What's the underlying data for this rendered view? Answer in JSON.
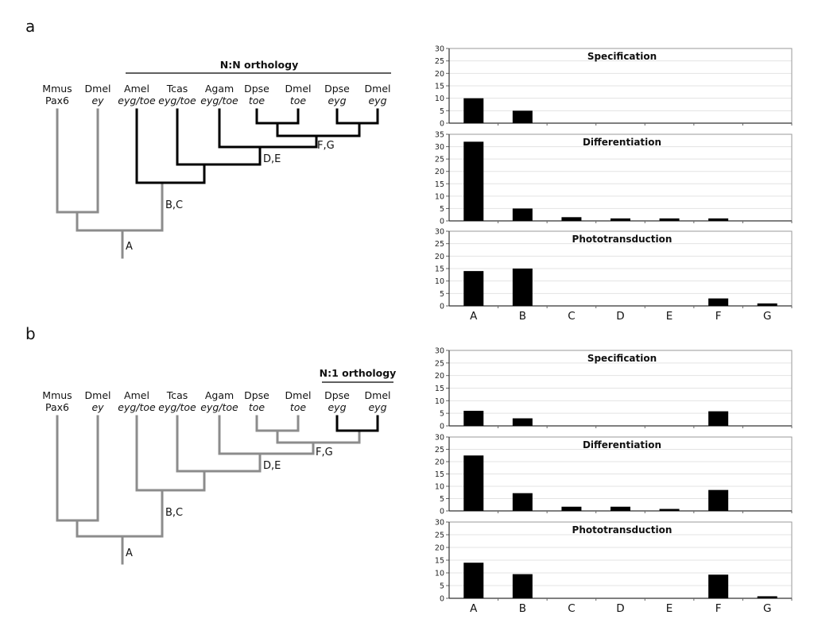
{
  "colors": {
    "gray_branch": "#8c8c8c",
    "black_branch": "#000000",
    "bar": "#000000",
    "grid": "#e3e3e3",
    "frame": "#9a9a9a"
  },
  "panels": [
    {
      "id": "a",
      "letter": "a",
      "orthology_title": "N:N orthology",
      "taxa": [
        {
          "species": "Mmus",
          "gene": "Pax6",
          "gene_italic": false
        },
        {
          "species": "Dmel",
          "gene": "ey",
          "gene_italic": true
        },
        {
          "species": "Amel",
          "gene": "eyg/toe",
          "gene_italic": true
        },
        {
          "species": "Tcas",
          "gene": "eyg/toe",
          "gene_italic": true
        },
        {
          "species": "Agam",
          "gene": "eyg/toe",
          "gene_italic": true
        },
        {
          "species": "Dpse",
          "gene": "toe",
          "gene_italic": true
        },
        {
          "species": "Dmel",
          "gene": "toe",
          "gene_italic": true
        },
        {
          "species": "Dpse",
          "gene": "eyg",
          "gene_italic": true
        },
        {
          "species": "Dmel",
          "gene": "eyg",
          "gene_italic": true
        }
      ],
      "node_labels": [
        "A",
        "B,C",
        "D,E",
        "F,G"
      ]
    },
    {
      "id": "b",
      "letter": "b",
      "orthology_title": "N:1 orthology",
      "taxa": [
        {
          "species": "Mmus",
          "gene": "Pax6",
          "gene_italic": false
        },
        {
          "species": "Dmel",
          "gene": "ey",
          "gene_italic": true
        },
        {
          "species": "Amel",
          "gene": "eyg/toe",
          "gene_italic": true
        },
        {
          "species": "Tcas",
          "gene": "eyg/toe",
          "gene_italic": true
        },
        {
          "species": "Agam",
          "gene": "eyg/toe",
          "gene_italic": true
        },
        {
          "species": "Dpse",
          "gene": "toe",
          "gene_italic": true
        },
        {
          "species": "Dmel",
          "gene": "toe",
          "gene_italic": true
        },
        {
          "species": "Dpse",
          "gene": "eyg",
          "gene_italic": true
        },
        {
          "species": "Dmel",
          "gene": "eyg",
          "gene_italic": true
        }
      ],
      "node_labels": [
        "A",
        "B,C",
        "D,E",
        "F,G"
      ]
    }
  ],
  "chart_data": [
    {
      "type": "bar",
      "panel": "a",
      "title": "Specification",
      "categories": [
        "A",
        "B",
        "C",
        "D",
        "E",
        "F",
        "G"
      ],
      "values": [
        10,
        5,
        0,
        0,
        0,
        0,
        0
      ],
      "ylim": [
        0,
        30
      ],
      "yticks": [
        0,
        5,
        10,
        15,
        20,
        25,
        30
      ],
      "grid": true
    },
    {
      "type": "bar",
      "panel": "a",
      "title": "Differentiation",
      "categories": [
        "A",
        "B",
        "C",
        "D",
        "E",
        "F",
        "G"
      ],
      "values": [
        32,
        5,
        1.5,
        1,
        1,
        1,
        0
      ],
      "ylim": [
        0,
        35
      ],
      "yticks": [
        0,
        5,
        10,
        15,
        20,
        25,
        30,
        35
      ],
      "grid": true
    },
    {
      "type": "bar",
      "panel": "a",
      "title": "Phototransduction",
      "categories": [
        "A",
        "B",
        "C",
        "D",
        "E",
        "F",
        "G"
      ],
      "values": [
        14,
        15,
        0,
        0,
        0,
        3,
        1
      ],
      "ylim": [
        0,
        30
      ],
      "yticks": [
        0,
        5,
        10,
        15,
        20,
        25,
        30
      ],
      "grid": true,
      "show_categories": true
    },
    {
      "type": "bar",
      "panel": "b",
      "title": "Specification",
      "categories": [
        "A",
        "B",
        "C",
        "D",
        "E",
        "F",
        "G"
      ],
      "values": [
        6,
        3,
        0,
        0,
        0,
        5.8,
        0
      ],
      "ylim": [
        0,
        30
      ],
      "yticks": [
        0,
        5,
        10,
        15,
        20,
        25,
        30
      ],
      "grid": true
    },
    {
      "type": "bar",
      "panel": "b",
      "title": "Differentiation",
      "categories": [
        "A",
        "B",
        "C",
        "D",
        "E",
        "F",
        "G"
      ],
      "values": [
        22.5,
        7.2,
        1.7,
        1.7,
        0.8,
        8.5,
        0
      ],
      "ylim": [
        0,
        30
      ],
      "yticks": [
        0,
        5,
        10,
        15,
        20,
        25,
        30
      ],
      "grid": true
    },
    {
      "type": "bar",
      "panel": "b",
      "title": "Phototransduction",
      "categories": [
        "A",
        "B",
        "C",
        "D",
        "E",
        "F",
        "G"
      ],
      "values": [
        14,
        9.5,
        0,
        0,
        0,
        9.3,
        0.8
      ],
      "ylim": [
        0,
        30
      ],
      "yticks": [
        0,
        5,
        10,
        15,
        20,
        25,
        30
      ],
      "grid": true,
      "show_categories": true
    }
  ]
}
